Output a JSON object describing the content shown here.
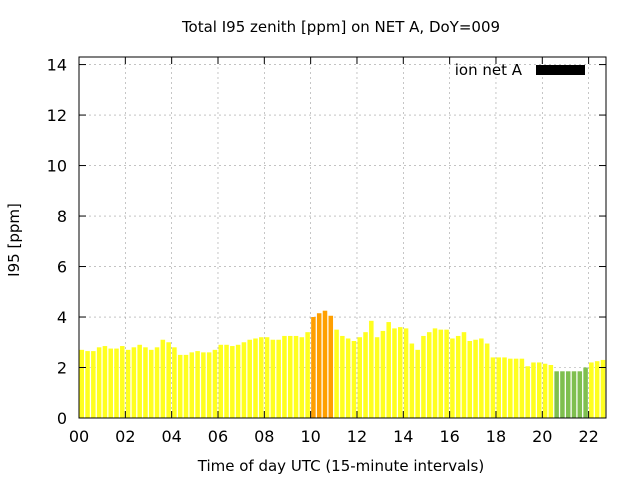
{
  "chart_data": {
    "type": "bar",
    "title": "Total I95 zenith [ppm] on NET A, DoY=009",
    "xlabel": "Time of day UTC (15-minute intervals)",
    "ylabel": "I95 [ppm]",
    "xlim": [
      0,
      22.75
    ],
    "ylim": [
      0,
      14.3
    ],
    "xticks": [
      0,
      2,
      4,
      6,
      8,
      10,
      12,
      14,
      16,
      18,
      20,
      22
    ],
    "xtick_labels": [
      "00",
      "02",
      "04",
      "06",
      "08",
      "10",
      "12",
      "14",
      "16",
      "18",
      "20",
      "22"
    ],
    "yticks": [
      0,
      2,
      4,
      6,
      8,
      10,
      12,
      14
    ],
    "ytick_labels": [
      "0",
      "2",
      "4",
      "6",
      "8",
      "10",
      "12",
      "14"
    ],
    "grid": true,
    "interval_hours": 0.25,
    "legend": {
      "label": "ion net A",
      "color": "#000000",
      "position": "top-right"
    },
    "color_scale": [
      {
        "max": 2.0,
        "color": "#7fbf4f"
      },
      {
        "max": 3.9,
        "color": "#ffff1f"
      },
      {
        "max": 99,
        "color": "#ff9f00"
      }
    ],
    "values": [
      2.7,
      2.65,
      2.65,
      2.8,
      2.85,
      2.75,
      2.75,
      2.85,
      2.7,
      2.8,
      2.9,
      2.8,
      2.7,
      2.8,
      3.1,
      3.0,
      2.8,
      2.5,
      2.5,
      2.6,
      2.65,
      2.6,
      2.6,
      2.7,
      2.9,
      2.9,
      2.85,
      2.9,
      3.0,
      3.1,
      3.15,
      3.2,
      3.2,
      3.1,
      3.1,
      3.25,
      3.25,
      3.25,
      3.2,
      3.4,
      4.0,
      4.15,
      4.25,
      4.05,
      3.5,
      3.25,
      3.15,
      3.05,
      3.2,
      3.4,
      3.85,
      3.2,
      3.45,
      3.8,
      3.55,
      3.6,
      3.55,
      2.95,
      2.7,
      3.25,
      3.4,
      3.55,
      3.5,
      3.5,
      3.15,
      3.25,
      3.4,
      3.05,
      3.1,
      3.15,
      2.95,
      2.4,
      2.4,
      2.4,
      2.35,
      2.35,
      2.35,
      2.05,
      2.2,
      2.2,
      2.15,
      2.1,
      1.85,
      1.85,
      1.85,
      1.85,
      1.85,
      2.0,
      2.2,
      2.25,
      2.3
    ]
  }
}
